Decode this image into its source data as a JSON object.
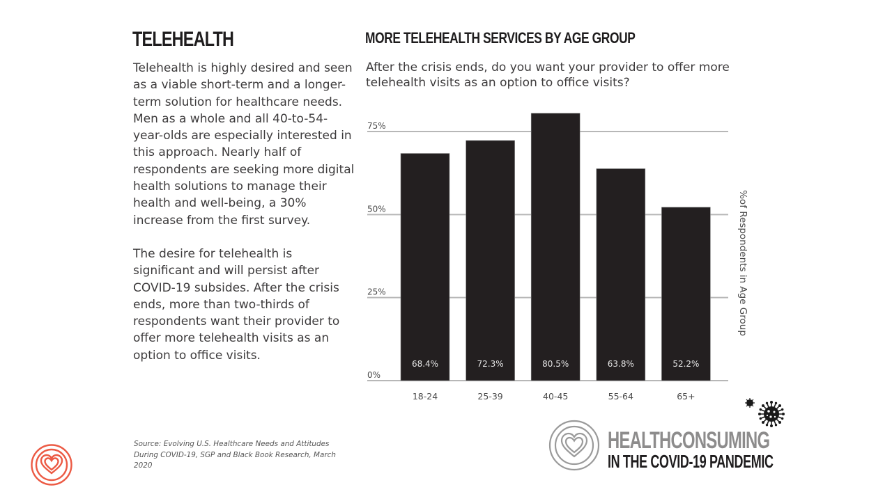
{
  "left_panel": {
    "title": "TELEHEALTH",
    "paragraphs": [
      "Telehealth is highly desired and seen as a viable short-term and a longer-term solution for healthcare needs. Men as a whole and all 40-to-54-year-olds are especially interested in this approach. Nearly half of respondents are seeking more digital health solutions to manage their health and well-being, a 30% increase from the first survey.",
      "The desire for telehealth is significant and will persist after COVID-19 subsides. After the crisis ends, more than two-thirds of respondents want their provider to offer more telehealth visits as an option to office visits."
    ]
  },
  "chart_data": {
    "type": "bar",
    "title": "MORE TELEHEALTH SERVICES BY AGE GROUP",
    "subtitle": "After the crisis ends, do you want your provider to offer more telehealth visits as an option to office visits?",
    "categories": [
      "18-24",
      "25-39",
      "40-45",
      "55-64",
      "65+"
    ],
    "values": [
      68.4,
      72.3,
      80.5,
      63.8,
      52.2
    ],
    "data_labels": [
      "68.4%",
      "72.3%",
      "80.5%",
      "63.8%",
      "52.2%"
    ],
    "xlabel": "",
    "ylabel": "%of Respondents in Age Group",
    "ylabel_position": "right",
    "ylim": [
      0,
      75
    ],
    "yticks": [
      0,
      25,
      50,
      75
    ],
    "ytick_labels": [
      "0%",
      "25%",
      "50%",
      "75%"
    ],
    "grid": true,
    "bar_color": "#231f20"
  },
  "footer": {
    "source": "Source: Evolving U.S. Healthcare Needs and Attitudes During COVID-19, SGP and Black Book Research, March 2020",
    "brand_name": "HEALTHCONSUMING",
    "brand_subtitle": "IN THE COVID-19 PANDEMIC",
    "icons": [
      "heart-rings-logo-icon",
      "virus-icon"
    ],
    "logo_accent_color": "#ec5a44",
    "brand_gray": "#8d8c8c"
  }
}
